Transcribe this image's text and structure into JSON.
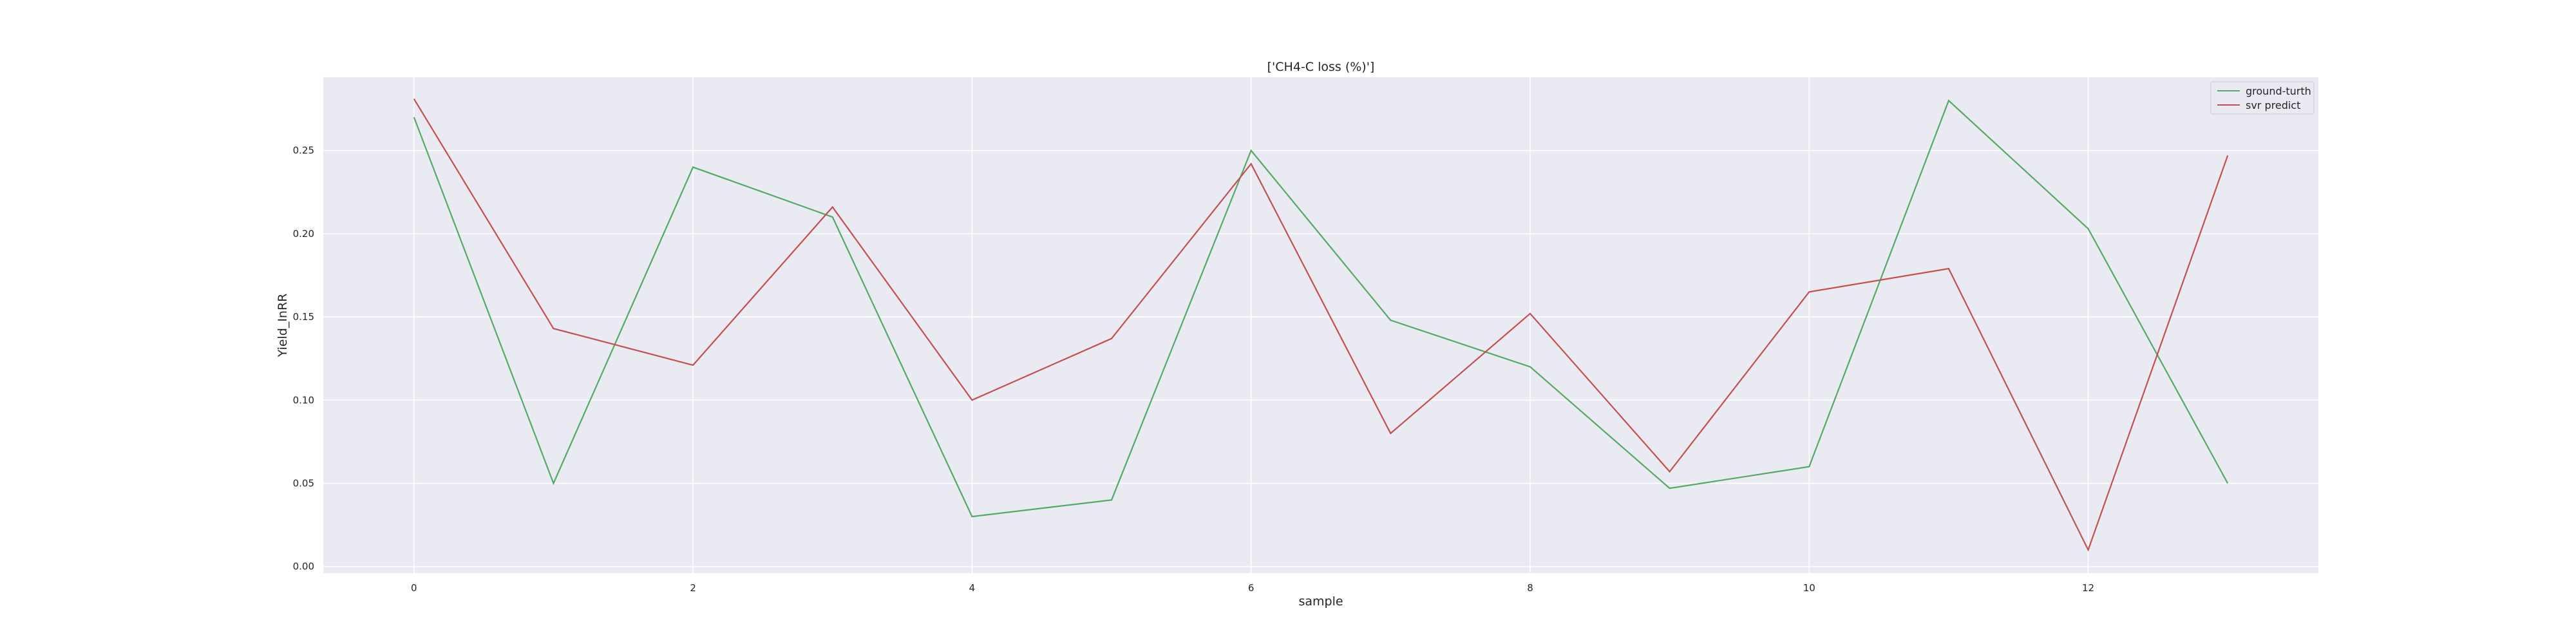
{
  "chart_data": {
    "type": "line",
    "title": "['CH4-C loss (%)']",
    "xlabel": "sample",
    "ylabel": "Yield_InRR",
    "x": [
      0,
      1,
      2,
      3,
      4,
      5,
      6,
      7,
      8,
      9,
      10,
      11,
      12,
      13
    ],
    "xlim": [
      -0.65,
      13.65
    ],
    "ylim": [
      -0.004,
      0.294
    ],
    "xticks": [
      0,
      2,
      4,
      6,
      8,
      10,
      12
    ],
    "xtick_labels": [
      "0",
      "2",
      "4",
      "6",
      "8",
      "10",
      "12"
    ],
    "yticks": [
      0.0,
      0.05,
      0.1,
      0.15,
      0.2,
      0.25
    ],
    "ytick_labels": [
      "0.00",
      "0.05",
      "0.10",
      "0.15",
      "0.20",
      "0.25"
    ],
    "grid": true,
    "legend_position": "top-right",
    "background_color": "#eaeaf2",
    "grid_color": "#ffffff",
    "series": [
      {
        "name": "ground-turth",
        "color": "#55a868",
        "values": [
          0.27,
          0.05,
          0.24,
          0.21,
          0.03,
          0.04,
          0.25,
          0.148,
          0.12,
          0.047,
          0.06,
          0.28,
          0.203,
          0.05
        ]
      },
      {
        "name": "svr predict",
        "color": "#c44e52",
        "values": [
          0.281,
          0.143,
          0.121,
          0.216,
          0.1,
          0.137,
          0.242,
          0.08,
          0.152,
          0.057,
          0.165,
          0.179,
          0.01,
          0.247
        ]
      }
    ]
  }
}
